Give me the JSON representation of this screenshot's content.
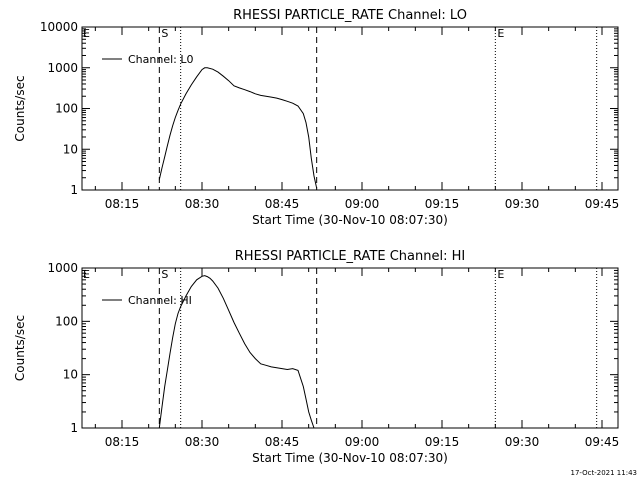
{
  "chart_data": [
    {
      "type": "line",
      "title": "RHESSI PARTICLE_RATE Channel: LO",
      "xlabel": "Start Time (30-Nov-10 08:07:30)",
      "ylabel": "Counts/sec",
      "yscale": "log",
      "xlim": [
        "08:07:30",
        "09:48:00"
      ],
      "ylim": [
        1,
        10000
      ],
      "xticks": [
        "08:15",
        "08:30",
        "08:45",
        "09:00",
        "09:15",
        "09:30",
        "09:45"
      ],
      "yticks": [
        "1",
        "10",
        "100",
        "1000",
        "10000"
      ],
      "legend": {
        "position": "top-left",
        "entries": [
          "Channel: L0"
        ]
      },
      "markers": [
        {
          "label": "S",
          "time": "08:22:00",
          "style": "dashed"
        },
        {
          "label": "",
          "time": "08:26:00",
          "style": "dotted"
        },
        {
          "label": "",
          "time": "08:51:30",
          "style": "dashed"
        },
        {
          "label": "E",
          "time": "09:25:00",
          "style": "dotted"
        },
        {
          "label": "",
          "time": "09:44:00",
          "style": "dotted"
        }
      ],
      "corner_marks": [
        "E"
      ],
      "series": [
        {
          "name": "Channel: L0",
          "x": [
            "08:22:00",
            "08:22:30",
            "08:23:00",
            "08:23:30",
            "08:24:00",
            "08:24:30",
            "08:25:00",
            "08:25:30",
            "08:26:00",
            "08:27:00",
            "08:28:00",
            "08:29:00",
            "08:30:00",
            "08:30:30",
            "08:31:00",
            "08:32:00",
            "08:33:00",
            "08:34:00",
            "08:35:00",
            "08:36:00",
            "08:37:00",
            "08:38:00",
            "08:39:00",
            "08:40:00",
            "08:41:00",
            "08:42:00",
            "08:43:00",
            "08:44:00",
            "08:45:00",
            "08:46:00",
            "08:47:00",
            "08:48:00",
            "08:49:00",
            "08:49:30",
            "08:50:00",
            "08:50:30",
            "08:51:00",
            "08:51:30"
          ],
          "y": [
            1.8,
            3.5,
            6.5,
            12,
            22,
            38,
            60,
            90,
            130,
            230,
            380,
            600,
            900,
            1000,
            1000,
            920,
            780,
            620,
            480,
            360,
            320,
            290,
            260,
            230,
            210,
            200,
            190,
            180,
            165,
            150,
            135,
            115,
            75,
            45,
            20,
            6,
            2.2,
            1.1
          ]
        }
      ]
    },
    {
      "type": "line",
      "title": "RHESSI PARTICLE_RATE Channel: HI",
      "xlabel": "Start Time (30-Nov-10 08:07:30)",
      "ylabel": "Counts/sec",
      "yscale": "log",
      "xlim": [
        "08:07:30",
        "09:48:00"
      ],
      "ylim": [
        1,
        1000
      ],
      "xticks": [
        "08:15",
        "08:30",
        "08:45",
        "09:00",
        "09:15",
        "09:30",
        "09:45"
      ],
      "yticks": [
        "1",
        "10",
        "100",
        "1000"
      ],
      "legend": {
        "position": "top-left",
        "entries": [
          "Channel: HI"
        ]
      },
      "markers": [
        {
          "label": "S",
          "time": "08:22:00",
          "style": "dashed"
        },
        {
          "label": "",
          "time": "08:26:00",
          "style": "dotted"
        },
        {
          "label": "",
          "time": "08:51:30",
          "style": "dashed"
        },
        {
          "label": "E",
          "time": "09:25:00",
          "style": "dotted"
        },
        {
          "label": "",
          "time": "09:44:00",
          "style": "dotted"
        }
      ],
      "corner_marks": [
        "E"
      ],
      "series": [
        {
          "name": "Channel: HI",
          "x": [
            "08:22:00",
            "08:22:30",
            "08:23:00",
            "08:23:30",
            "08:24:00",
            "08:24:30",
            "08:25:00",
            "08:25:30",
            "08:26:00",
            "08:27:00",
            "08:28:00",
            "08:29:00",
            "08:30:00",
            "08:30:30",
            "08:31:00",
            "08:31:30",
            "08:32:00",
            "08:33:00",
            "08:34:00",
            "08:35:00",
            "08:36:00",
            "08:37:00",
            "08:38:00",
            "08:39:00",
            "08:40:00",
            "08:41:00",
            "08:42:00",
            "08:43:00",
            "08:44:00",
            "08:45:00",
            "08:46:00",
            "08:47:00",
            "08:48:00",
            "08:49:00",
            "08:49:30",
            "08:50:00",
            "08:50:30",
            "08:51:00"
          ],
          "y": [
            1.0,
            2.5,
            6,
            12,
            25,
            50,
            90,
            140,
            190,
            300,
            450,
            600,
            700,
            720,
            690,
            640,
            570,
            420,
            270,
            160,
            95,
            60,
            38,
            26,
            20,
            16,
            15,
            14,
            13.5,
            13,
            12.5,
            13,
            12,
            6,
            3.5,
            2,
            1.4,
            1.0
          ]
        }
      ]
    }
  ],
  "footer": {
    "timestamp": "17-Oct-2021 11:43"
  }
}
